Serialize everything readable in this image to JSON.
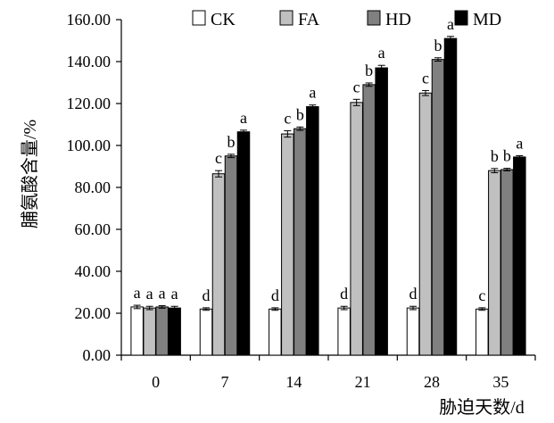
{
  "chart_data": {
    "type": "bar",
    "xlabel": "胁迫天数/d",
    "ylabel": "脯氨酸含量/%",
    "categories": [
      "0",
      "7",
      "14",
      "21",
      "28",
      "35"
    ],
    "ylim": [
      0,
      160
    ],
    "yticks": [
      "0.00",
      "20.00",
      "40.00",
      "60.00",
      "80.00",
      "100.00",
      "120.00",
      "140.00",
      "160.00"
    ],
    "legend_position": "top",
    "grid": false,
    "series": [
      {
        "name": "CK",
        "color": "#ffffff",
        "values": [
          23,
          22,
          22,
          22.5,
          22.5,
          22
        ],
        "error": [
          0.8,
          0.6,
          0.6,
          0.8,
          0.8,
          0.6
        ],
        "labels": [
          "a",
          "d",
          "d",
          "d",
          "d",
          "c"
        ]
      },
      {
        "name": "FA",
        "color": "#c0c0c0",
        "values": [
          22.5,
          86.5,
          105.5,
          120.5,
          125,
          88
        ],
        "error": [
          0.8,
          1.5,
          1.5,
          1.5,
          1.2,
          1.0
        ],
        "labels": [
          "a",
          "c",
          "c",
          "c",
          "c",
          "b"
        ]
      },
      {
        "name": "HD",
        "color": "#808080",
        "values": [
          23,
          95,
          108,
          129,
          141,
          88.5
        ],
        "error": [
          0.6,
          0.8,
          0.8,
          0.8,
          0.8,
          0.6
        ],
        "labels": [
          "a",
          "b",
          "b",
          "b",
          "b",
          "b"
        ]
      },
      {
        "name": "MD",
        "color": "#000000",
        "values": [
          22.5,
          106.5,
          118.5,
          137,
          151,
          94.5
        ],
        "error": [
          0.8,
          0.8,
          0.8,
          1.2,
          1.0,
          0.6
        ],
        "labels": [
          "a",
          "a",
          "a",
          "a",
          "a",
          "a"
        ]
      }
    ]
  }
}
